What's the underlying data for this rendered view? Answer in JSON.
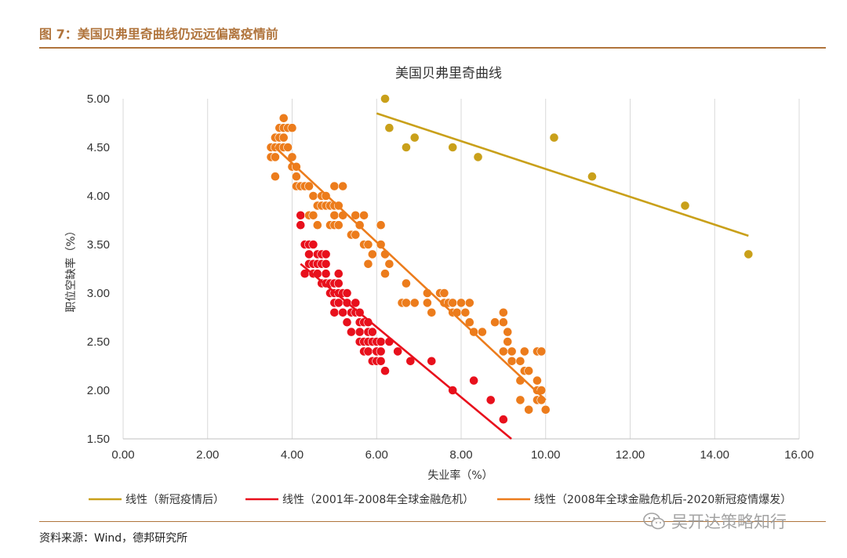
{
  "figure_title": "图 7：美国贝弗里奇曲线仍远远偏离疫情前",
  "source": "资料来源：Wind，德邦研究所",
  "watermark": "吴开达策略知行",
  "chart_data": {
    "type": "scatter",
    "title": "美国贝弗里奇曲线",
    "xlabel": "失业率（%）",
    "ylabel": "职位空缺率（%）",
    "xlim": [
      0,
      16
    ],
    "ylim": [
      1.5,
      5.0
    ],
    "x_ticks": [
      "0.00",
      "2.00",
      "4.00",
      "6.00",
      "8.00",
      "10.00",
      "12.00",
      "14.00",
      "16.00"
    ],
    "y_ticks": [
      "1.50",
      "2.00",
      "2.50",
      "3.00",
      "3.50",
      "4.00",
      "4.50",
      "5.00"
    ],
    "grid": "vertical",
    "legend_position": "bottom",
    "series": [
      {
        "key": "s2001",
        "color": "#e8101c",
        "points": [
          [
            4.2,
            3.8
          ],
          [
            4.2,
            3.7
          ],
          [
            4.3,
            3.5
          ],
          [
            4.3,
            3.2
          ],
          [
            4.4,
            3.5
          ],
          [
            4.4,
            3.4
          ],
          [
            4.4,
            3.3
          ],
          [
            4.5,
            3.5
          ],
          [
            4.5,
            3.3
          ],
          [
            4.5,
            3.2
          ],
          [
            4.6,
            3.4
          ],
          [
            4.6,
            3.3
          ],
          [
            4.6,
            3.2
          ],
          [
            4.7,
            3.4
          ],
          [
            4.7,
            3.3
          ],
          [
            4.7,
            3.1
          ],
          [
            4.8,
            3.4
          ],
          [
            4.8,
            3.3
          ],
          [
            4.8,
            3.2
          ],
          [
            4.8,
            3.1
          ],
          [
            4.9,
            3.1
          ],
          [
            4.9,
            3.0
          ],
          [
            5.0,
            3.1
          ],
          [
            5.0,
            3.0
          ],
          [
            5.0,
            2.9
          ],
          [
            5.0,
            2.8
          ],
          [
            5.1,
            3.2
          ],
          [
            5.1,
            3.1
          ],
          [
            5.1,
            3.0
          ],
          [
            5.1,
            2.9
          ],
          [
            5.2,
            3.0
          ],
          [
            5.2,
            2.8
          ],
          [
            5.3,
            3.0
          ],
          [
            5.3,
            2.9
          ],
          [
            5.3,
            2.7
          ],
          [
            5.4,
            2.8
          ],
          [
            5.4,
            2.6
          ],
          [
            5.5,
            2.9
          ],
          [
            5.5,
            2.8
          ],
          [
            5.6,
            2.8
          ],
          [
            5.6,
            2.7
          ],
          [
            5.6,
            2.6
          ],
          [
            5.6,
            2.5
          ],
          [
            5.7,
            2.7
          ],
          [
            5.7,
            2.5
          ],
          [
            5.7,
            2.4
          ],
          [
            5.8,
            2.7
          ],
          [
            5.8,
            2.6
          ],
          [
            5.8,
            2.5
          ],
          [
            5.8,
            2.4
          ],
          [
            5.9,
            2.6
          ],
          [
            5.9,
            2.5
          ],
          [
            5.9,
            2.3
          ],
          [
            6.0,
            2.5
          ],
          [
            6.0,
            2.4
          ],
          [
            6.0,
            2.3
          ],
          [
            6.1,
            2.5
          ],
          [
            6.1,
            2.4
          ],
          [
            6.1,
            2.3
          ],
          [
            6.2,
            2.2
          ],
          [
            6.3,
            2.5
          ],
          [
            6.5,
            2.4
          ],
          [
            6.8,
            2.3
          ],
          [
            7.3,
            2.3
          ],
          [
            7.8,
            2.0
          ],
          [
            8.3,
            2.1
          ],
          [
            8.7,
            1.9
          ],
          [
            9.0,
            1.7
          ]
        ]
      },
      {
        "key": "s2008",
        "color": "#ec7c1c",
        "points": [
          [
            3.5,
            4.5
          ],
          [
            3.5,
            4.4
          ],
          [
            3.6,
            4.6
          ],
          [
            3.6,
            4.5
          ],
          [
            3.6,
            4.4
          ],
          [
            3.6,
            4.2
          ],
          [
            3.7,
            4.6
          ],
          [
            3.7,
            4.5
          ],
          [
            3.7,
            4.7
          ],
          [
            3.8,
            4.8
          ],
          [
            3.8,
            4.7
          ],
          [
            3.8,
            4.6
          ],
          [
            3.8,
            4.5
          ],
          [
            3.9,
            4.7
          ],
          [
            3.9,
            4.5
          ],
          [
            4.0,
            4.7
          ],
          [
            4.0,
            4.4
          ],
          [
            4.0,
            4.3
          ],
          [
            4.1,
            4.3
          ],
          [
            4.1,
            4.2
          ],
          [
            4.1,
            4.1
          ],
          [
            4.2,
            4.1
          ],
          [
            4.3,
            4.1
          ],
          [
            4.4,
            4.1
          ],
          [
            4.4,
            3.8
          ],
          [
            4.5,
            4.0
          ],
          [
            4.5,
            3.8
          ],
          [
            4.6,
            3.9
          ],
          [
            4.6,
            3.7
          ],
          [
            4.7,
            4.0
          ],
          [
            4.7,
            3.9
          ],
          [
            4.8,
            4.0
          ],
          [
            4.8,
            3.9
          ],
          [
            4.9,
            3.9
          ],
          [
            4.9,
            3.7
          ],
          [
            5.0,
            4.1
          ],
          [
            5.0,
            3.9
          ],
          [
            5.0,
            3.8
          ],
          [
            5.0,
            3.7
          ],
          [
            5.1,
            3.9
          ],
          [
            5.1,
            3.7
          ],
          [
            5.2,
            4.1
          ],
          [
            5.2,
            3.8
          ],
          [
            5.4,
            3.6
          ],
          [
            5.5,
            3.8
          ],
          [
            5.5,
            3.6
          ],
          [
            5.6,
            3.7
          ],
          [
            5.7,
            3.8
          ],
          [
            5.7,
            3.5
          ],
          [
            5.8,
            3.5
          ],
          [
            5.8,
            3.3
          ],
          [
            5.9,
            3.4
          ],
          [
            6.1,
            3.7
          ],
          [
            6.1,
            3.5
          ],
          [
            6.2,
            3.4
          ],
          [
            6.2,
            3.2
          ],
          [
            6.3,
            3.3
          ],
          [
            6.6,
            2.9
          ],
          [
            6.7,
            3.1
          ],
          [
            6.7,
            2.9
          ],
          [
            6.9,
            2.9
          ],
          [
            7.2,
            3.0
          ],
          [
            7.2,
            2.9
          ],
          [
            7.3,
            2.8
          ],
          [
            7.5,
            3.0
          ],
          [
            7.6,
            2.9
          ],
          [
            7.6,
            3.0
          ],
          [
            7.7,
            2.9
          ],
          [
            7.8,
            2.9
          ],
          [
            7.8,
            2.8
          ],
          [
            7.9,
            2.8
          ],
          [
            8.0,
            2.9
          ],
          [
            8.1,
            2.8
          ],
          [
            8.2,
            2.9
          ],
          [
            8.2,
            2.7
          ],
          [
            8.3,
            2.6
          ],
          [
            8.5,
            2.6
          ],
          [
            8.8,
            2.7
          ],
          [
            9.0,
            2.8
          ],
          [
            9.0,
            2.7
          ],
          [
            9.1,
            2.6
          ],
          [
            9.0,
            2.4
          ],
          [
            9.1,
            2.5
          ],
          [
            9.2,
            2.4
          ],
          [
            9.2,
            2.3
          ],
          [
            9.4,
            2.3
          ],
          [
            9.4,
            2.1
          ],
          [
            9.5,
            2.4
          ],
          [
            9.5,
            2.2
          ],
          [
            9.4,
            1.9
          ],
          [
            9.6,
            2.2
          ],
          [
            9.6,
            1.8
          ],
          [
            9.8,
            2.4
          ],
          [
            9.8,
            2.1
          ],
          [
            9.8,
            2.0
          ],
          [
            9.8,
            1.9
          ],
          [
            9.9,
            2.4
          ],
          [
            9.9,
            2.0
          ],
          [
            9.9,
            1.9
          ],
          [
            10.0,
            1.8
          ]
        ]
      },
      {
        "key": "spost",
        "color": "#c9a01a",
        "points": [
          [
            6.2,
            5.0
          ],
          [
            6.3,
            4.7
          ],
          [
            6.7,
            4.5
          ],
          [
            6.9,
            4.6
          ],
          [
            7.8,
            4.5
          ],
          [
            8.4,
            4.4
          ],
          [
            10.2,
            4.6
          ],
          [
            11.1,
            4.2
          ],
          [
            13.3,
            3.9
          ],
          [
            14.8,
            3.4
          ]
        ]
      }
    ],
    "trendlines": [
      {
        "key": "spost",
        "color": "#c9a01a",
        "x": [
          6.0,
          14.8
        ],
        "y": [
          4.85,
          3.59
        ]
      },
      {
        "key": "s2001",
        "color": "#e8101c",
        "x": [
          4.2,
          9.3
        ],
        "y": [
          3.3,
          1.46
        ]
      },
      {
        "key": "s2008",
        "color": "#ec7c1c",
        "x": [
          3.6,
          10.0
        ],
        "y": [
          4.5,
          1.9
        ]
      }
    ],
    "legend": [
      {
        "key": "spost",
        "color": "#c9a01a",
        "label": "线性（新冠疫情后）"
      },
      {
        "key": "s2001",
        "color": "#e8101c",
        "label": "线性（2001年-2008年全球金融危机）"
      },
      {
        "key": "s2008",
        "color": "#ec7c1c",
        "label": "线性（2008年全球金融危机后-2020新冠疫情爆发）"
      }
    ]
  }
}
